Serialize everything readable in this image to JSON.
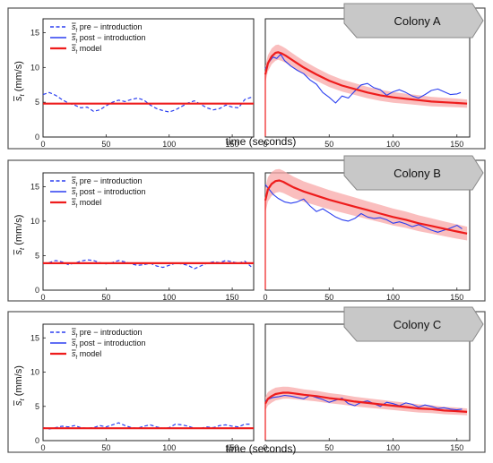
{
  "colors": {
    "pre": "#2b3ff0",
    "post": "#2b3ff0",
    "model": "#ee1c1c",
    "band": "#f8a8a8",
    "tag_fill": "#c8c8c8",
    "tag_stroke": "#8a8a8a",
    "frame": "#555555"
  },
  "shared": {
    "xlabel": "time (seconds)",
    "ylabel_main": "s",
    "ylabel_sub": "t",
    "ylabel_units": " (mm/s)",
    "legend": [
      {
        "sym": "s",
        "sub": "t",
        "text": " pre − introduction",
        "style": "dashed"
      },
      {
        "sym": "s",
        "sub": "t",
        "text": " post − introduction",
        "style": "solid-blue"
      },
      {
        "sym": "s",
        "sub": "t",
        "text": " model",
        "style": "solid-red"
      }
    ]
  },
  "chart_data": [
    {
      "type": "line",
      "title": "Colony A",
      "xlabel": "time (seconds)",
      "ylabel": "s̄t (mm/s)",
      "left": {
        "xlim": [
          0,
          167
        ],
        "ylim": [
          0,
          17
        ],
        "xticks": [
          0,
          50,
          100,
          150
        ],
        "yticks": [
          0,
          5,
          10,
          15
        ],
        "series": [
          {
            "name": "s̄t pre − introduction",
            "style": "dashed",
            "x": [
              0,
              5,
              10,
              15,
              20,
              25,
              30,
              35,
              40,
              45,
              50,
              55,
              60,
              65,
              70,
              75,
              80,
              85,
              90,
              95,
              100,
              105,
              110,
              115,
              120,
              125,
              130,
              135,
              140,
              145,
              150,
              155,
              160,
              165
            ],
            "y": [
              6.1,
              6.4,
              6.0,
              5.4,
              4.9,
              4.6,
              4.2,
              4.3,
              3.7,
              3.9,
              4.5,
              5.0,
              5.3,
              5.1,
              5.4,
              5.6,
              5.3,
              4.6,
              4.1,
              3.8,
              3.6,
              3.9,
              4.4,
              4.9,
              5.2,
              4.7,
              4.2,
              3.9,
              4.1,
              4.6,
              4.3,
              4.2,
              5.4,
              5.7
            ]
          },
          {
            "name": "s̄t model",
            "style": "solid-red",
            "x": [
              0,
              167
            ],
            "y": [
              4.8,
              4.8
            ]
          }
        ]
      },
      "right": {
        "xlim": [
          0,
          160
        ],
        "ylim": [
          0,
          17
        ],
        "xticks": [
          0,
          50,
          100,
          150
        ],
        "yticks": [],
        "band_halfwidth": [
          1.2,
          0.6
        ],
        "series": [
          {
            "name": "s̄t post − introduction",
            "style": "solid-blue",
            "x": [
              0,
              3,
              6,
              9,
              12,
              15,
              20,
              25,
              30,
              35,
              40,
              45,
              50,
              55,
              60,
              65,
              70,
              75,
              80,
              85,
              90,
              95,
              100,
              105,
              110,
              115,
              120,
              125,
              130,
              135,
              140,
              145,
              150,
              153
            ],
            "y": [
              9.8,
              10.8,
              11.5,
              11.3,
              11.9,
              11.0,
              10.2,
              9.6,
              9.1,
              8.2,
              7.6,
              6.4,
              5.7,
              4.9,
              5.9,
              5.6,
              6.6,
              7.5,
              7.7,
              7.1,
              6.8,
              6.0,
              6.5,
              6.8,
              6.4,
              5.9,
              5.6,
              6.1,
              6.7,
              6.9,
              6.5,
              6.1,
              6.2,
              6.4
            ]
          },
          {
            "name": "s̄t model",
            "style": "solid-red",
            "x": [
              0,
              2,
              5,
              8,
              10,
              13,
              16,
              20,
              25,
              30,
              40,
              50,
              60,
              70,
              80,
              90,
              100,
              110,
              120,
              130,
              140,
              150,
              158
            ],
            "y": [
              9.0,
              10.6,
              11.6,
              12.1,
              12.2,
              12.0,
              11.7,
              11.2,
              10.6,
              10.0,
              9.0,
              8.1,
              7.4,
              6.9,
              6.4,
              6.0,
              5.7,
              5.5,
              5.3,
              5.1,
              5.0,
              4.9,
              4.8
            ]
          }
        ]
      }
    },
    {
      "type": "line",
      "title": "Colony B",
      "xlabel": "",
      "ylabel": "s̄t (mm/s)",
      "left": {
        "xlim": [
          0,
          167
        ],
        "ylim": [
          0,
          17
        ],
        "xticks": [
          0,
          50,
          100,
          150
        ],
        "yticks": [
          0,
          5,
          10,
          15
        ],
        "series": [
          {
            "name": "s̄t pre − introduction",
            "style": "dashed",
            "x": [
              0,
              5,
              10,
              15,
              20,
              25,
              30,
              35,
              40,
              45,
              50,
              55,
              60,
              65,
              70,
              75,
              80,
              85,
              90,
              95,
              100,
              105,
              110,
              115,
              120,
              125,
              130,
              135,
              140,
              145,
              150,
              155,
              160,
              165
            ],
            "y": [
              3.8,
              4.0,
              4.3,
              4.1,
              3.7,
              3.9,
              4.2,
              4.4,
              4.3,
              4.0,
              3.8,
              4.0,
              4.3,
              4.1,
              3.8,
              3.6,
              3.7,
              3.9,
              3.5,
              3.3,
              3.6,
              3.9,
              3.8,
              3.6,
              3.1,
              3.5,
              3.9,
              4.1,
              4.0,
              4.3,
              4.1,
              3.9,
              4.2,
              3.4
            ]
          },
          {
            "name": "s̄t model",
            "style": "solid-red",
            "x": [
              0,
              167
            ],
            "y": [
              3.9,
              3.9
            ]
          }
        ]
      },
      "right": {
        "xlim": [
          0,
          160
        ],
        "ylim": [
          0,
          17
        ],
        "xticks": [
          0,
          50,
          100,
          150
        ],
        "yticks": [],
        "band_halfwidth": [
          1.8,
          1.0
        ],
        "series": [
          {
            "name": "s̄t post − introduction",
            "style": "solid-blue",
            "x": [
              0,
              3,
              6,
              10,
              15,
              20,
              25,
              30,
              35,
              40,
              45,
              50,
              55,
              60,
              65,
              70,
              75,
              80,
              85,
              90,
              95,
              100,
              105,
              110,
              115,
              120,
              125,
              130,
              135,
              140,
              145,
              150,
              154
            ],
            "y": [
              15.3,
              14.6,
              13.9,
              13.3,
              12.8,
              12.6,
              12.8,
              13.2,
              12.2,
              11.4,
              11.8,
              11.2,
              10.6,
              10.2,
              10.0,
              10.4,
              11.1,
              10.6,
              10.4,
              10.5,
              10.2,
              9.7,
              9.9,
              9.6,
              9.2,
              9.5,
              9.1,
              8.7,
              8.4,
              8.7,
              9.0,
              9.4,
              8.9
            ]
          },
          {
            "name": "s̄t model",
            "style": "solid-red",
            "x": [
              0,
              2,
              5,
              8,
              11,
              14,
              18,
              22,
              26,
              30,
              40,
              50,
              60,
              70,
              80,
              90,
              100,
              110,
              120,
              130,
              140,
              150,
              158
            ],
            "y": [
              13.0,
              14.6,
              15.4,
              15.8,
              15.9,
              15.7,
              15.3,
              14.9,
              14.6,
              14.3,
              13.7,
              13.1,
              12.6,
              12.1,
              11.6,
              11.1,
              10.6,
              10.2,
              9.7,
              9.3,
              8.9,
              8.5,
              8.2
            ]
          }
        ]
      }
    },
    {
      "type": "line",
      "title": "Colony C",
      "xlabel": "time (seconds)",
      "ylabel": "s̄t (mm/s)",
      "left": {
        "xlim": [
          0,
          167
        ],
        "ylim": [
          0,
          17
        ],
        "xticks": [
          0,
          50,
          100,
          150
        ],
        "yticks": [
          0,
          5,
          10,
          15
        ],
        "series": [
          {
            "name": "s̄t pre − introduction",
            "style": "dashed",
            "x": [
              0,
              5,
              10,
              15,
              20,
              25,
              30,
              35,
              40,
              45,
              50,
              55,
              60,
              65,
              70,
              75,
              80,
              85,
              90,
              95,
              100,
              105,
              110,
              115,
              120,
              125,
              130,
              135,
              140,
              145,
              150,
              155,
              160,
              165
            ],
            "y": [
              1.9,
              1.7,
              1.9,
              2.1,
              2.0,
              2.2,
              1.9,
              1.8,
              1.9,
              2.2,
              2.0,
              2.3,
              2.6,
              2.2,
              1.9,
              1.8,
              2.1,
              2.3,
              2.0,
              1.8,
              1.9,
              2.4,
              2.3,
              2.1,
              1.8,
              1.8,
              2.0,
              1.9,
              2.2,
              2.3,
              2.1,
              2.0,
              2.4,
              2.4
            ]
          },
          {
            "name": "s̄t model",
            "style": "solid-red",
            "x": [
              0,
              167
            ],
            "y": [
              1.8,
              1.8
            ]
          }
        ]
      },
      "right": {
        "xlim": [
          0,
          160
        ],
        "ylim": [
          0,
          17
        ],
        "xticks": [
          0,
          50,
          100,
          150
        ],
        "yticks": [],
        "band_halfwidth": [
          1.0,
          0.5
        ],
        "series": [
          {
            "name": "s̄t post − introduction",
            "style": "solid-blue",
            "x": [
              0,
              3,
              6,
              10,
              15,
              20,
              25,
              30,
              35,
              40,
              45,
              50,
              55,
              60,
              65,
              70,
              75,
              80,
              85,
              90,
              95,
              100,
              105,
              110,
              115,
              120,
              125,
              130,
              135,
              140,
              145,
              150,
              154
            ],
            "y": [
              5.8,
              6.1,
              6.3,
              6.4,
              6.6,
              6.5,
              6.3,
              6.1,
              6.6,
              6.3,
              6.0,
              5.6,
              5.9,
              6.2,
              5.4,
              5.1,
              5.6,
              5.8,
              5.4,
              5.0,
              5.6,
              5.4,
              5.1,
              5.5,
              5.3,
              4.9,
              5.2,
              5.0,
              4.7,
              4.8,
              4.6,
              4.5,
              4.6
            ]
          },
          {
            "name": "s̄t model",
            "style": "solid-red",
            "x": [
              0,
              2,
              5,
              8,
              11,
              14,
              18,
              22,
              26,
              30,
              40,
              50,
              60,
              70,
              80,
              90,
              100,
              110,
              120,
              130,
              140,
              150,
              158
            ],
            "y": [
              5.4,
              6.1,
              6.5,
              6.8,
              6.9,
              7.0,
              7.0,
              6.9,
              6.8,
              6.7,
              6.5,
              6.2,
              6.0,
              5.7,
              5.5,
              5.3,
              5.1,
              4.9,
              4.7,
              4.6,
              4.4,
              4.3,
              4.2
            ]
          }
        ]
      }
    }
  ]
}
